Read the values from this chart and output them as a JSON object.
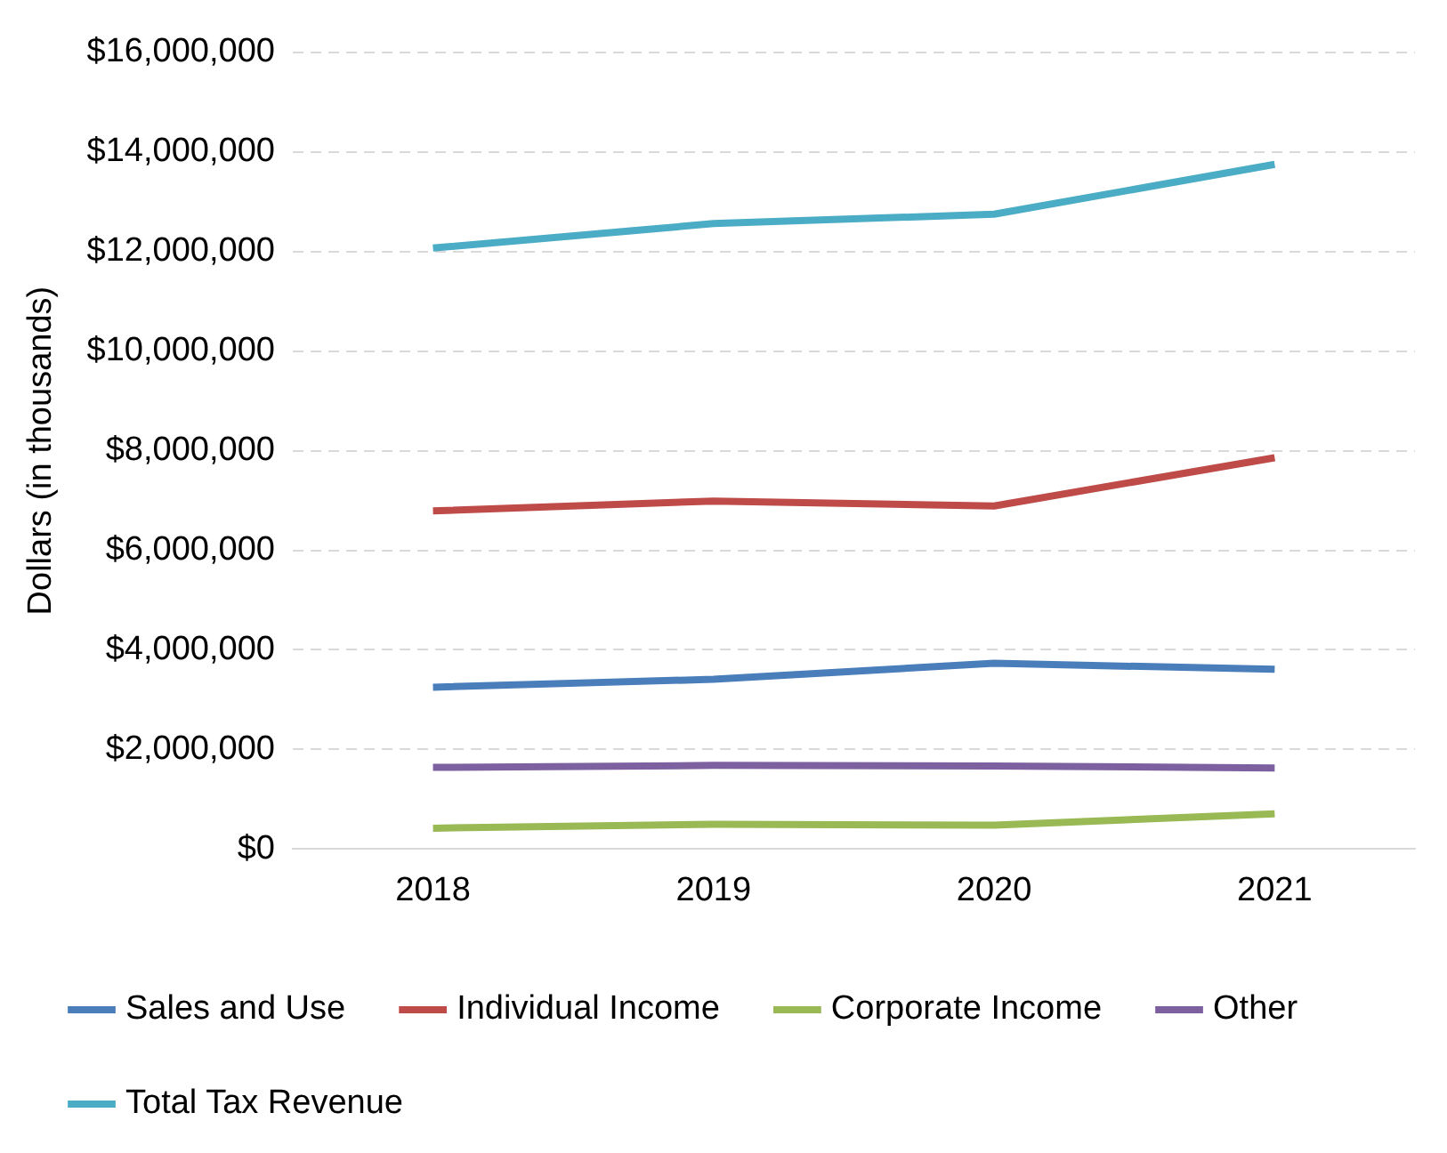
{
  "chart_data": {
    "type": "line",
    "ylabel": "Dollars (in thousands)",
    "categories": [
      "2018",
      "2019",
      "2020",
      "2021"
    ],
    "series": [
      {
        "name": "Sales and Use",
        "color": "#4a7ebb",
        "values": [
          3250000,
          3410000,
          3730000,
          3610000
        ]
      },
      {
        "name": "Individual Income",
        "color": "#be4b48",
        "values": [
          6790000,
          6990000,
          6890000,
          7860000
        ]
      },
      {
        "name": "Corporate Income",
        "color": "#98b954",
        "values": [
          420000,
          500000,
          480000,
          710000
        ]
      },
      {
        "name": "Other",
        "color": "#7d60a0",
        "values": [
          1640000,
          1680000,
          1670000,
          1630000
        ]
      },
      {
        "name": "Total Tax Revenue",
        "color": "#4bacc6",
        "values": [
          12070000,
          12560000,
          12750000,
          13750000
        ]
      }
    ],
    "ylim": [
      0,
      16000000
    ],
    "yticks": [
      {
        "value": 0,
        "label": "$0"
      },
      {
        "value": 2000000,
        "label": "$2,000,000"
      },
      {
        "value": 4000000,
        "label": "$4,000,000"
      },
      {
        "value": 6000000,
        "label": "$6,000,000"
      },
      {
        "value": 8000000,
        "label": "$8,000,000"
      },
      {
        "value": 10000000,
        "label": "$10,000,000"
      },
      {
        "value": 12000000,
        "label": "$12,000,000"
      },
      {
        "value": 14000000,
        "label": "$14,000,000"
      },
      {
        "value": 16000000,
        "label": "$16,000,000"
      }
    ],
    "grid": "y",
    "legend": "bottom",
    "marker": "none",
    "line_style": "solid"
  }
}
